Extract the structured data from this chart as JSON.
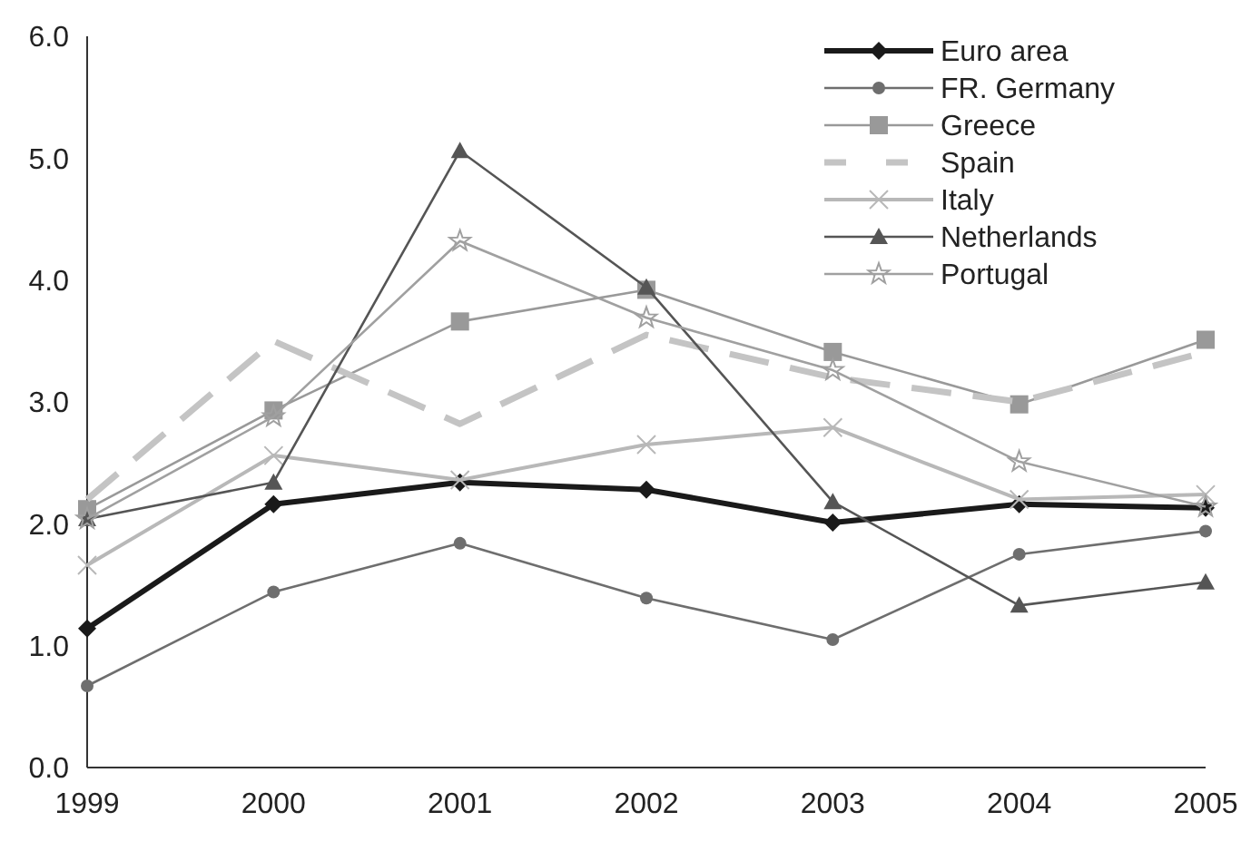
{
  "chart_data": {
    "type": "line",
    "x": [
      1999,
      2000,
      2001,
      2002,
      2003,
      2004,
      2005
    ],
    "xlim": [
      1999,
      2005
    ],
    "xticks": [
      1999,
      2000,
      2001,
      2002,
      2003,
      2004,
      2005
    ],
    "ylim": [
      0,
      6
    ],
    "yticks": [
      {
        "value": 0,
        "label": "0.0"
      },
      {
        "value": 1,
        "label": "1.0"
      },
      {
        "value": 2,
        "label": "2.0"
      },
      {
        "value": 3,
        "label": "3.0"
      },
      {
        "value": 4,
        "label": "4.0"
      },
      {
        "value": 5,
        "label": "5.0"
      },
      {
        "value": 6,
        "label": "6.0"
      }
    ],
    "grid": false,
    "legend": "top right",
    "series": [
      {
        "name": "Euro area",
        "color": "#1a1a1a",
        "marker": "diamond",
        "line_style": "solid",
        "values": [
          1.14,
          2.16,
          2.34,
          2.28,
          2.01,
          2.16,
          2.13
        ]
      },
      {
        "name": "FR. Germany",
        "color": "#6e6e6e",
        "marker": "circle",
        "line_style": "solid",
        "values": [
          0.67,
          1.44,
          1.84,
          1.39,
          1.05,
          1.75,
          1.94
        ]
      },
      {
        "name": "Greece",
        "color": "#999999",
        "marker": "square",
        "line_style": "solid",
        "values": [
          2.12,
          2.93,
          3.66,
          3.92,
          3.41,
          2.98,
          3.51
        ]
      },
      {
        "name": "Spain",
        "color": "#c4c4c4",
        "marker": "none",
        "line_style": "dashed",
        "values": [
          2.2,
          3.5,
          2.82,
          3.55,
          3.2,
          3.0,
          3.41
        ]
      },
      {
        "name": "Italy",
        "color": "#b8b8b8",
        "marker": "cross",
        "line_style": "solid",
        "values": [
          1.66,
          2.56,
          2.36,
          2.65,
          2.79,
          2.2,
          2.24
        ]
      },
      {
        "name": "Netherlands",
        "color": "#555555",
        "marker": "triangle",
        "line_style": "solid",
        "values": [
          2.04,
          2.34,
          5.06,
          3.94,
          2.18,
          1.33,
          1.52
        ]
      },
      {
        "name": "Portugal",
        "color": "#a0a0a0",
        "marker": "star",
        "line_style": "solid",
        "values": [
          2.04,
          2.88,
          4.32,
          3.69,
          3.26,
          2.51,
          2.14
        ]
      }
    ]
  }
}
